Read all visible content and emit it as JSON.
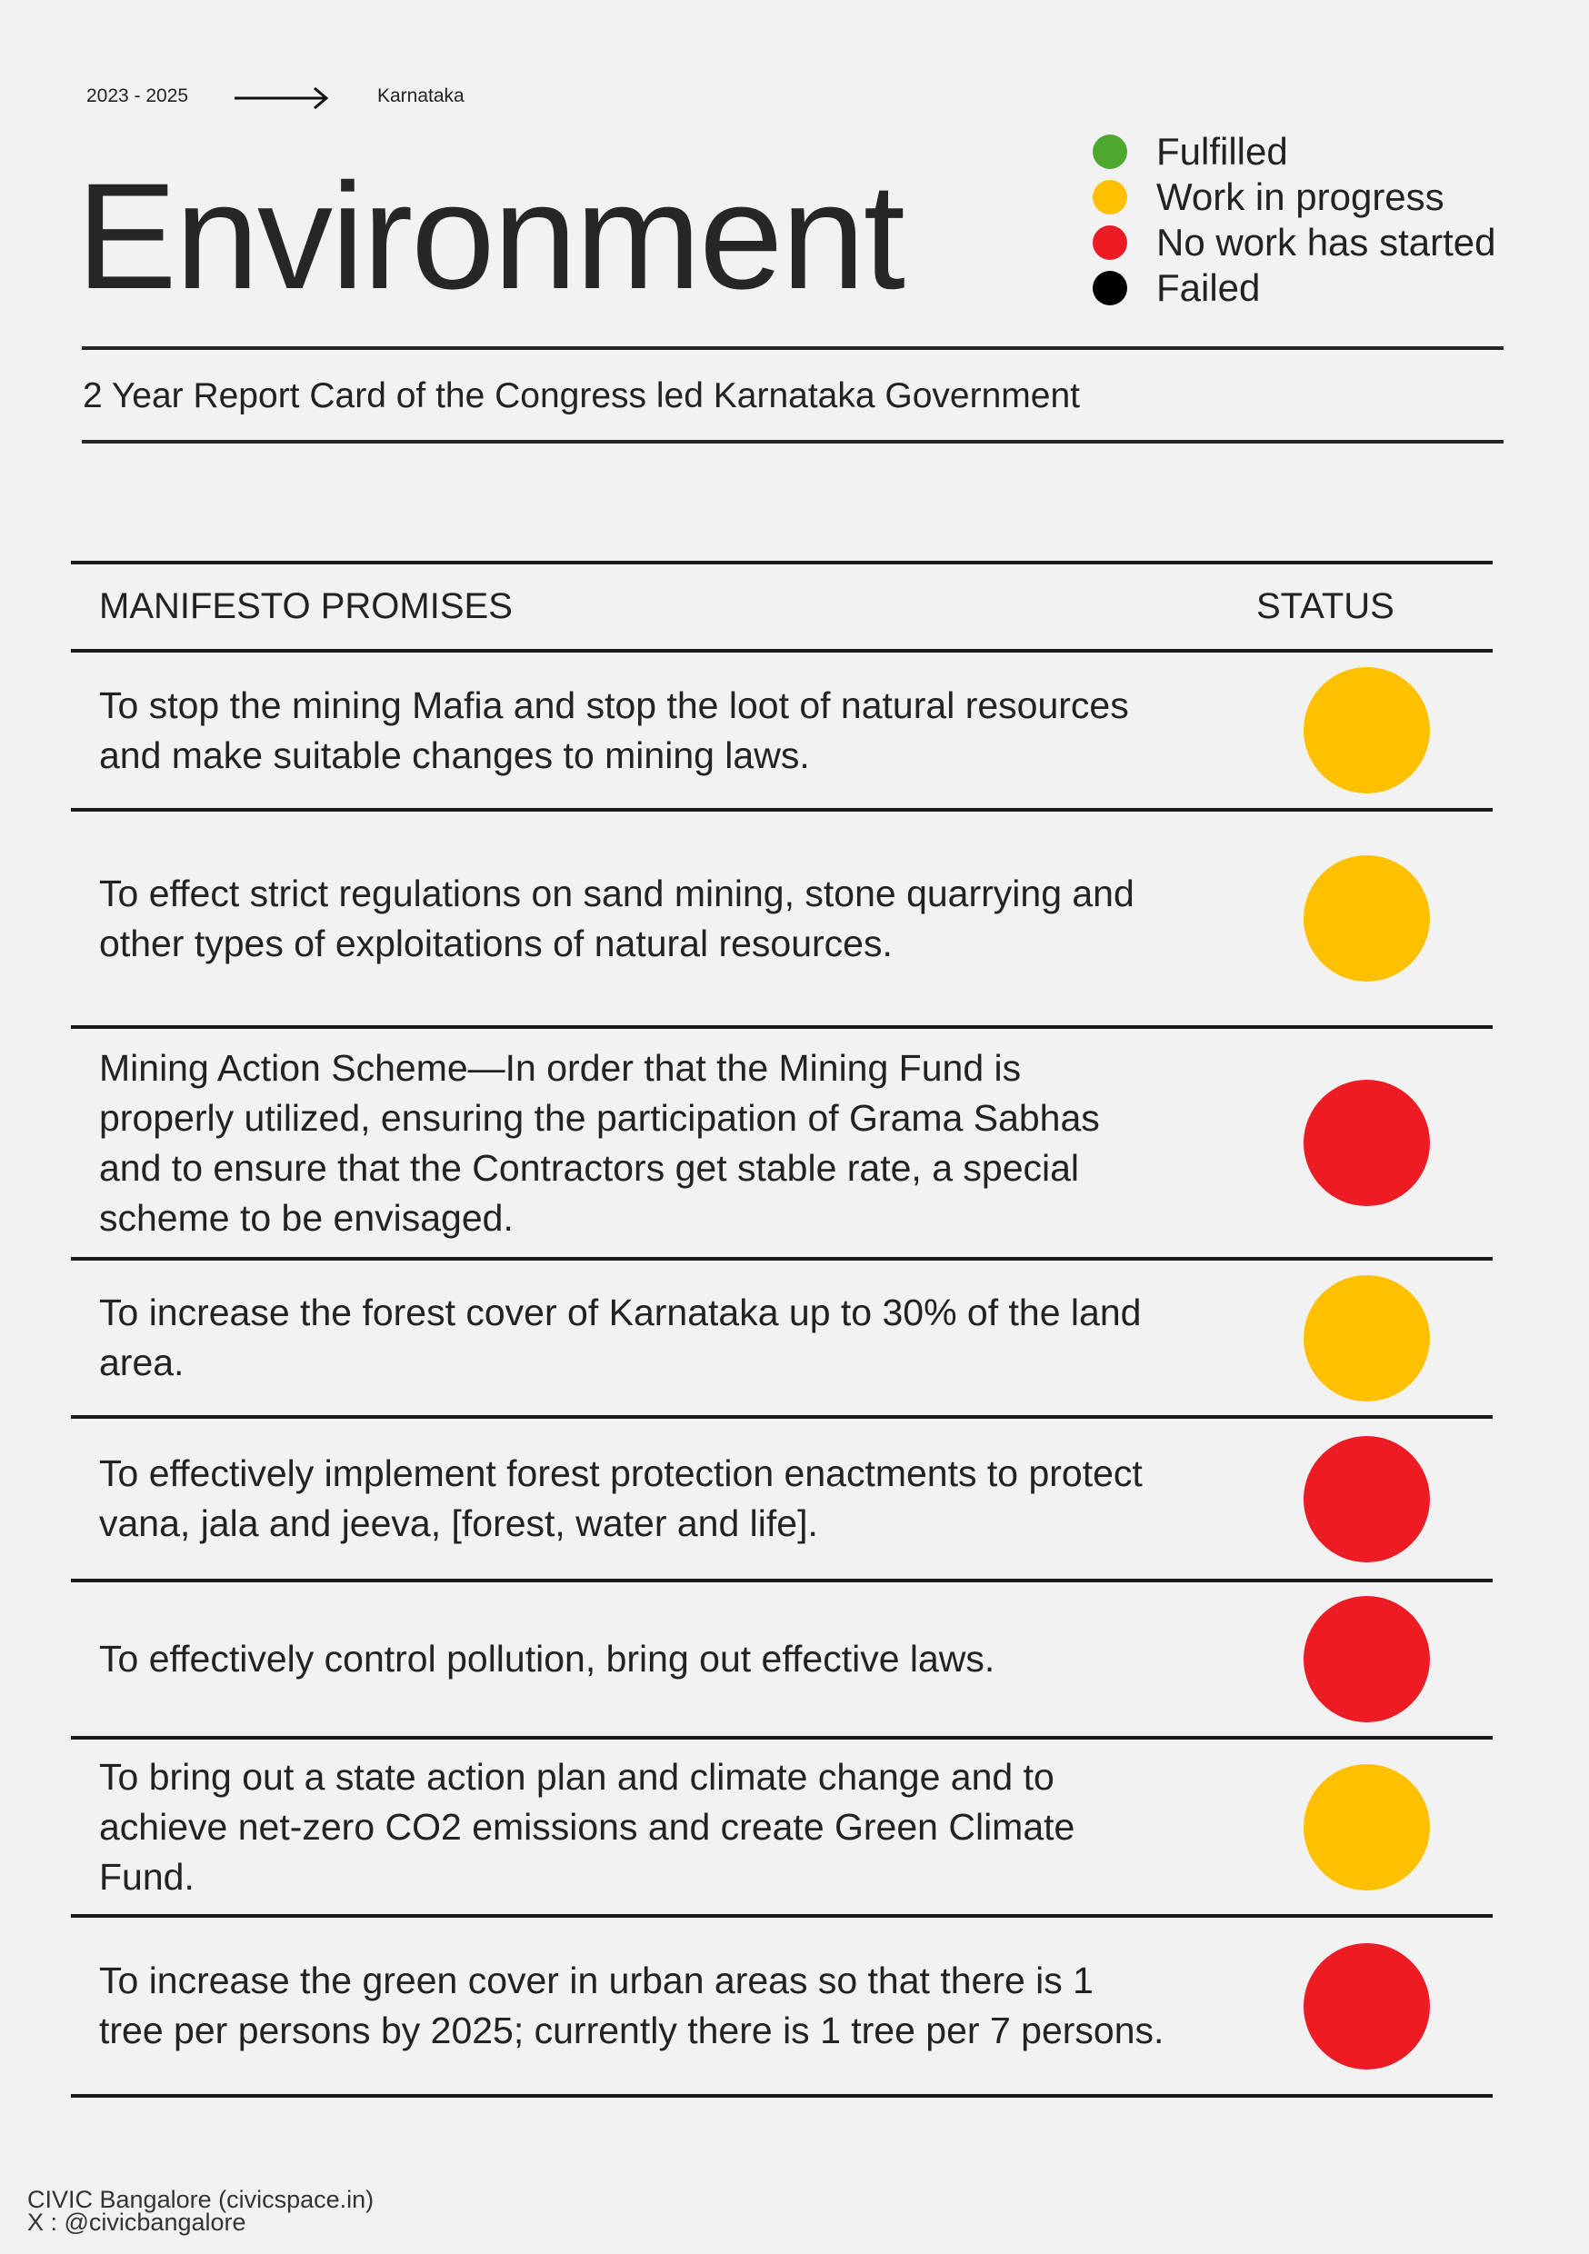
{
  "header": {
    "period": "2023 - 2025",
    "region": "Karnataka",
    "title": "Environment",
    "subtitle": "2 Year Report Card of the Congress led Karnataka Government"
  },
  "colors": {
    "fulfilled": "#4ea72e",
    "work_in_progress": "#ffc000",
    "not_started": "#ed1c24",
    "failed": "#000000"
  },
  "legend": [
    {
      "label": "Fulfilled",
      "status": "fulfilled"
    },
    {
      "label": "Work in progress",
      "status": "work_in_progress"
    },
    {
      "label": "No work has started",
      "status": "not_started"
    },
    {
      "label": "Failed",
      "status": "failed"
    }
  ],
  "table": {
    "headers": {
      "promise": "MANIFESTO PROMISES",
      "status": "STATUS"
    },
    "rows": [
      {
        "promise": "To stop the mining Mafia and stop the loot of natural resources and make suitable changes to mining laws.",
        "status": "work_in_progress"
      },
      {
        "promise": "To effect strict regulations on sand mining, stone quarrying and other types of exploitations of natural resources.",
        "status": "work_in_progress"
      },
      {
        "promise": "Mining Action Scheme—In order that the Mining Fund is properly utilized, ensuring the participation of Grama Sabhas and to ensure that the Contractors get stable rate, a special scheme to be envisaged.",
        "status": "not_started"
      },
      {
        "promise": "To increase the forest cover of Karnataka up to 30% of the land area.",
        "status": "work_in_progress"
      },
      {
        "promise": "To effectively implement forest protection enactments to protect vana, jala and jeeva, [forest, water and life].",
        "status": "not_started"
      },
      {
        "promise": "To effectively control pollution, bring out effective laws.",
        "status": "not_started"
      },
      {
        "promise": "To bring out a state action plan and climate change and to achieve net-zero CO2 emissions and create Green Climate Fund.",
        "status": "work_in_progress"
      },
      {
        "promise": "To increase the green cover in urban areas so that there is 1 tree per persons by 2025; currently there is 1 tree per 7 persons.",
        "status": "not_started"
      }
    ]
  },
  "footer": {
    "org": "CIVIC Bangalore (civicspace.in)",
    "handle": "X : @civicbangalore"
  }
}
